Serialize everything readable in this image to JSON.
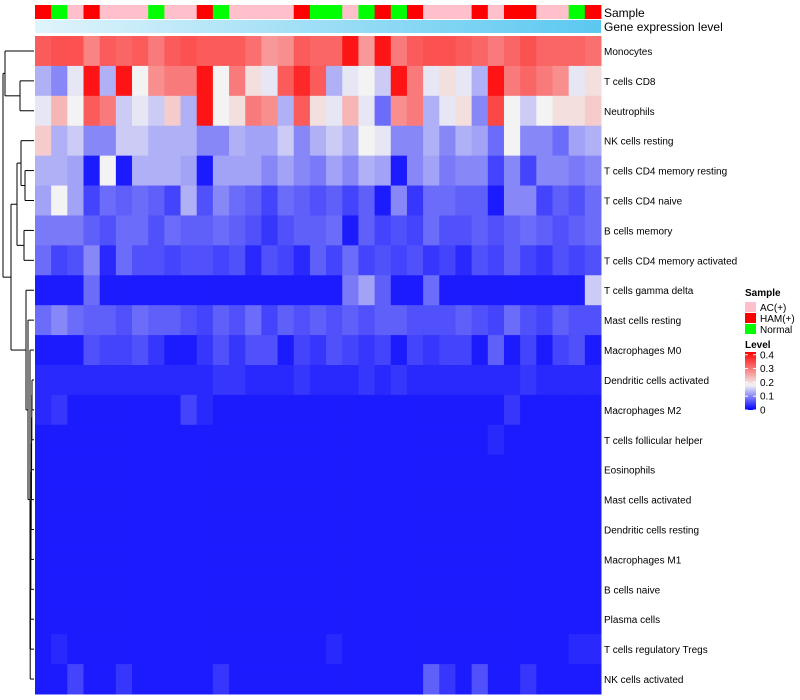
{
  "chart_data": {
    "type": "heatmap",
    "title": "",
    "annotation_labels": [
      "Sample",
      "Gene expression level"
    ],
    "rows": [
      "Monocytes",
      "T cells CD8",
      "Neutrophils",
      "NK cells resting",
      "T cells CD4 memory resting",
      "T cells CD4 naive",
      "B cells memory",
      "T cells CD4 memory activated",
      "T cells gamma delta",
      "Mast cells resting",
      "Macrophages M0",
      "Dendritic cells activated",
      "Macrophages M2",
      "T cells follicular helper",
      "Eosinophils",
      "Mast cells activated",
      "Dendritic cells resting",
      "Macrophages M1",
      "B cells naive",
      "Plasma cells",
      "T cells regulatory  Tregs",
      "NK cells activated"
    ],
    "sample_groups": [
      "HAM(+)",
      "Normal",
      "AC(+)",
      "HAM(+)",
      "AC(+)",
      "AC(+)",
      "AC(+)",
      "Normal",
      "AC(+)",
      "AC(+)",
      "HAM(+)",
      "Normal",
      "AC(+)",
      "AC(+)",
      "AC(+)",
      "AC(+)",
      "HAM(+)",
      "Normal",
      "Normal",
      "AC(+)",
      "Normal",
      "HAM(+)",
      "Normal",
      "HAM(+)",
      "AC(+)",
      "AC(+)",
      "AC(+)",
      "HAM(+)",
      "AC(+)",
      "HAM(+)",
      "HAM(+)",
      "AC(+)",
      "AC(+)",
      "Normal",
      "HAM(+)"
    ],
    "values": [
      [
        0.33,
        0.34,
        0.34,
        0.29,
        0.33,
        0.32,
        0.33,
        0.3,
        0.33,
        0.34,
        0.33,
        0.33,
        0.33,
        0.31,
        0.27,
        0.28,
        0.33,
        0.32,
        0.32,
        0.4,
        0.27,
        0.4,
        0.3,
        0.33,
        0.34,
        0.34,
        0.33,
        0.32,
        0.3,
        0.32,
        0.34,
        0.32,
        0.32,
        0.32,
        0.31
      ],
      [
        0.13,
        0.1,
        0.17,
        0.4,
        0.13,
        0.4,
        0.18,
        0.28,
        0.3,
        0.3,
        0.4,
        0.18,
        0.3,
        0.2,
        0.17,
        0.33,
        0.38,
        0.33,
        0.13,
        0.17,
        0.18,
        0.15,
        0.4,
        0.3,
        0.17,
        0.2,
        0.17,
        0.13,
        0.4,
        0.3,
        0.32,
        0.3,
        0.28,
        0.17,
        0.2
      ],
      [
        0.17,
        0.24,
        0.18,
        0.33,
        0.3,
        0.15,
        0.17,
        0.15,
        0.22,
        0.13,
        0.4,
        0.18,
        0.2,
        0.3,
        0.28,
        0.13,
        0.33,
        0.2,
        0.17,
        0.24,
        0.17,
        0.08,
        0.28,
        0.3,
        0.13,
        0.17,
        0.2,
        0.1,
        0.35,
        0.18,
        0.15,
        0.18,
        0.2,
        0.2,
        0.22
      ],
      [
        0.22,
        0.13,
        0.15,
        0.1,
        0.1,
        0.15,
        0.15,
        0.13,
        0.13,
        0.13,
        0.1,
        0.1,
        0.13,
        0.12,
        0.12,
        0.15,
        0.1,
        0.13,
        0.15,
        0.13,
        0.18,
        0.17,
        0.1,
        0.1,
        0.13,
        0.1,
        0.13,
        0.12,
        0.08,
        0.18,
        0.1,
        0.1,
        0.08,
        0.12,
        0.13
      ],
      [
        0.13,
        0.13,
        0.12,
        0.02,
        0.18,
        0.02,
        0.13,
        0.13,
        0.13,
        0.12,
        0.02,
        0.12,
        0.12,
        0.12,
        0.1,
        0.12,
        0.1,
        0.09,
        0.12,
        0.1,
        0.13,
        0.12,
        0.02,
        0.1,
        0.12,
        0.09,
        0.1,
        0.1,
        0.05,
        0.1,
        0.05,
        0.1,
        0.1,
        0.09,
        0.1
      ],
      [
        0.12,
        0.18,
        0.12,
        0.05,
        0.08,
        0.07,
        0.08,
        0.07,
        0.05,
        0.13,
        0.06,
        0.1,
        0.08,
        0.07,
        0.05,
        0.08,
        0.07,
        0.06,
        0.07,
        0.05,
        0.07,
        0.02,
        0.1,
        0.04,
        0.08,
        0.08,
        0.07,
        0.07,
        0.02,
        0.1,
        0.1,
        0.05,
        0.07,
        0.06,
        0.08
      ],
      [
        0.09,
        0.09,
        0.09,
        0.07,
        0.06,
        0.08,
        0.08,
        0.06,
        0.08,
        0.07,
        0.07,
        0.08,
        0.07,
        0.06,
        0.04,
        0.06,
        0.07,
        0.07,
        0.08,
        0.02,
        0.07,
        0.05,
        0.06,
        0.05,
        0.08,
        0.06,
        0.06,
        0.07,
        0.06,
        0.07,
        0.08,
        0.07,
        0.06,
        0.07,
        0.08
      ],
      [
        0.08,
        0.05,
        0.06,
        0.1,
        0.03,
        0.08,
        0.06,
        0.06,
        0.05,
        0.06,
        0.06,
        0.05,
        0.06,
        0.03,
        0.06,
        0.05,
        0.03,
        0.07,
        0.05,
        0.08,
        0.05,
        0.06,
        0.05,
        0.06,
        0.04,
        0.05,
        0.03,
        0.06,
        0.05,
        0.07,
        0.05,
        0.04,
        0.06,
        0.05,
        0.06
      ],
      [
        0.02,
        0.02,
        0.02,
        0.08,
        0.02,
        0.02,
        0.02,
        0.02,
        0.02,
        0.02,
        0.02,
        0.02,
        0.02,
        0.02,
        0.02,
        0.02,
        0.02,
        0.02,
        0.02,
        0.09,
        0.12,
        0.07,
        0.02,
        0.02,
        0.08,
        0.02,
        0.02,
        0.02,
        0.02,
        0.02,
        0.02,
        0.02,
        0.02,
        0.02,
        0.15
      ],
      [
        0.08,
        0.1,
        0.08,
        0.07,
        0.07,
        0.06,
        0.08,
        0.07,
        0.07,
        0.06,
        0.05,
        0.07,
        0.06,
        0.08,
        0.05,
        0.07,
        0.06,
        0.07,
        0.06,
        0.07,
        0.06,
        0.07,
        0.07,
        0.06,
        0.06,
        0.06,
        0.07,
        0.06,
        0.05,
        0.08,
        0.06,
        0.05,
        0.07,
        0.06,
        0.06
      ],
      [
        0.02,
        0.02,
        0.02,
        0.06,
        0.05,
        0.05,
        0.06,
        0.04,
        0.02,
        0.02,
        0.04,
        0.06,
        0.04,
        0.06,
        0.06,
        0.02,
        0.05,
        0.04,
        0.06,
        0.05,
        0.04,
        0.05,
        0.02,
        0.05,
        0.04,
        0.05,
        0.05,
        0.02,
        0.07,
        0.02,
        0.05,
        0.02,
        0.05,
        0.06,
        0.02
      ],
      [
        0.03,
        0.03,
        0.03,
        0.03,
        0.03,
        0.03,
        0.03,
        0.03,
        0.03,
        0.03,
        0.03,
        0.04,
        0.04,
        0.03,
        0.03,
        0.03,
        0.04,
        0.03,
        0.03,
        0.03,
        0.04,
        0.03,
        0.04,
        0.03,
        0.03,
        0.03,
        0.03,
        0.03,
        0.03,
        0.03,
        0.04,
        0.03,
        0.03,
        0.03,
        0.03
      ],
      [
        0.03,
        0.04,
        0.02,
        0.02,
        0.02,
        0.02,
        0.02,
        0.02,
        0.02,
        0.05,
        0.03,
        0.02,
        0.02,
        0.02,
        0.02,
        0.02,
        0.02,
        0.02,
        0.02,
        0.02,
        0.02,
        0.02,
        0.02,
        0.02,
        0.02,
        0.02,
        0.02,
        0.02,
        0.02,
        0.04,
        0.02,
        0.02,
        0.02,
        0.02,
        0.02
      ],
      [
        0.02,
        0.02,
        0.02,
        0.02,
        0.02,
        0.02,
        0.02,
        0.02,
        0.02,
        0.02,
        0.02,
        0.02,
        0.02,
        0.02,
        0.02,
        0.02,
        0.02,
        0.02,
        0.02,
        0.02,
        0.02,
        0.02,
        0.02,
        0.02,
        0.02,
        0.02,
        0.02,
        0.02,
        0.03,
        0.02,
        0.02,
        0.02,
        0.02,
        0.02,
        0.02
      ],
      [
        0.02,
        0.02,
        0.02,
        0.02,
        0.02,
        0.02,
        0.02,
        0.02,
        0.02,
        0.02,
        0.02,
        0.02,
        0.02,
        0.02,
        0.02,
        0.02,
        0.02,
        0.02,
        0.02,
        0.02,
        0.02,
        0.02,
        0.02,
        0.02,
        0.02,
        0.02,
        0.02,
        0.02,
        0.02,
        0.02,
        0.02,
        0.02,
        0.02,
        0.02,
        0.02
      ],
      [
        0.02,
        0.02,
        0.02,
        0.02,
        0.02,
        0.02,
        0.02,
        0.02,
        0.02,
        0.02,
        0.02,
        0.02,
        0.02,
        0.02,
        0.02,
        0.02,
        0.02,
        0.02,
        0.02,
        0.02,
        0.02,
        0.02,
        0.02,
        0.02,
        0.02,
        0.02,
        0.02,
        0.02,
        0.02,
        0.02,
        0.02,
        0.02,
        0.02,
        0.02,
        0.02
      ],
      [
        0.02,
        0.02,
        0.02,
        0.02,
        0.02,
        0.02,
        0.02,
        0.02,
        0.02,
        0.02,
        0.02,
        0.02,
        0.02,
        0.02,
        0.02,
        0.02,
        0.02,
        0.02,
        0.02,
        0.02,
        0.02,
        0.02,
        0.02,
        0.02,
        0.02,
        0.02,
        0.02,
        0.02,
        0.02,
        0.02,
        0.02,
        0.02,
        0.02,
        0.02,
        0.02
      ],
      [
        0.02,
        0.02,
        0.02,
        0.02,
        0.02,
        0.02,
        0.02,
        0.02,
        0.02,
        0.02,
        0.02,
        0.02,
        0.02,
        0.02,
        0.02,
        0.02,
        0.02,
        0.02,
        0.02,
        0.02,
        0.02,
        0.02,
        0.02,
        0.02,
        0.02,
        0.02,
        0.02,
        0.02,
        0.02,
        0.02,
        0.02,
        0.02,
        0.02,
        0.02,
        0.02
      ],
      [
        0.02,
        0.02,
        0.02,
        0.02,
        0.02,
        0.02,
        0.02,
        0.02,
        0.02,
        0.02,
        0.02,
        0.02,
        0.02,
        0.02,
        0.02,
        0.02,
        0.02,
        0.02,
        0.02,
        0.02,
        0.02,
        0.02,
        0.02,
        0.02,
        0.02,
        0.02,
        0.02,
        0.02,
        0.02,
        0.02,
        0.02,
        0.02,
        0.02,
        0.02,
        0.02
      ],
      [
        0.02,
        0.02,
        0.02,
        0.02,
        0.02,
        0.02,
        0.02,
        0.02,
        0.02,
        0.02,
        0.02,
        0.02,
        0.02,
        0.02,
        0.02,
        0.02,
        0.02,
        0.02,
        0.02,
        0.02,
        0.02,
        0.02,
        0.02,
        0.02,
        0.02,
        0.02,
        0.02,
        0.02,
        0.02,
        0.02,
        0.02,
        0.02,
        0.02,
        0.02,
        0.02
      ],
      [
        0.02,
        0.03,
        0.02,
        0.02,
        0.02,
        0.02,
        0.02,
        0.02,
        0.02,
        0.02,
        0.02,
        0.02,
        0.02,
        0.02,
        0.02,
        0.02,
        0.02,
        0.02,
        0.03,
        0.02,
        0.02,
        0.02,
        0.02,
        0.02,
        0.02,
        0.02,
        0.02,
        0.02,
        0.02,
        0.02,
        0.02,
        0.02,
        0.02,
        0.03,
        0.03
      ],
      [
        0.02,
        0.02,
        0.05,
        0.02,
        0.02,
        0.04,
        0.02,
        0.02,
        0.02,
        0.02,
        0.02,
        0.04,
        0.02,
        0.02,
        0.02,
        0.02,
        0.02,
        0.02,
        0.02,
        0.02,
        0.02,
        0.02,
        0.02,
        0.02,
        0.07,
        0.04,
        0.02,
        0.06,
        0.02,
        0.02,
        0.04,
        0.02,
        0.02,
        0.02,
        0.02
      ]
    ],
    "color_scale": {
      "legend_title": "Level",
      "ticks": [
        "0.4",
        "0.3",
        "0.2",
        "0.1",
        "0"
      ],
      "tick_values": [
        0.4,
        0.3,
        0.2,
        0.1,
        0
      ],
      "range": [
        0,
        0.42
      ],
      "low_color": "#0000ff",
      "mid_color": "#f3f3f3",
      "high_color": "#ff0000",
      "mid_value": 0.18
    },
    "sample_legend": {
      "title": "Sample",
      "entries": [
        {
          "label": "AC(+)",
          "color": "#ffc0cb"
        },
        {
          "label": "HAM(+)",
          "color": "#ff0000"
        },
        {
          "label": "Normal",
          "color": "#00ff00"
        }
      ]
    },
    "expression_bar": {
      "from_color": "#e0f4fb",
      "to_color": "#5bc8f0"
    }
  }
}
